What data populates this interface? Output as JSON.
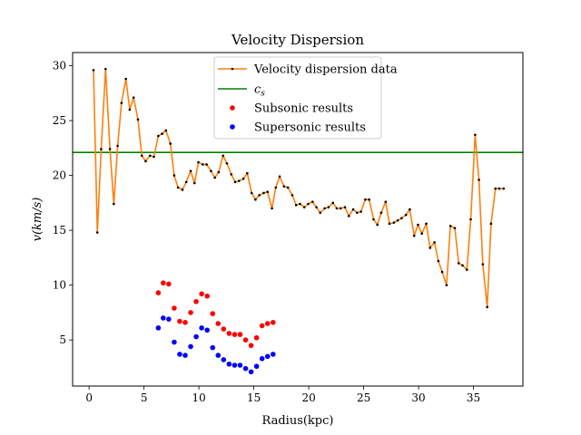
{
  "chart_data": {
    "type": "line",
    "title": "Velocity Dispersion",
    "xlabel": "Radius(kpc)",
    "ylabel": "v(km/s)",
    "xlim": [
      -1.5,
      39.5
    ],
    "ylim": [
      0.8,
      31.2
    ],
    "xticks": [
      0,
      5,
      10,
      15,
      20,
      25,
      30,
      35
    ],
    "yticks": [
      5,
      10,
      15,
      20,
      25,
      30
    ],
    "grid": false,
    "legend_position": "top-center",
    "series": [
      {
        "name": "Velocity dispersion data",
        "kind": "line-with-markers",
        "color": "#ff7f0e",
        "marker_color": "#000000",
        "x": [
          0.4,
          0.75,
          1.1,
          1.5,
          1.9,
          2.25,
          2.6,
          2.95,
          3.35,
          3.7,
          4.05,
          4.45,
          4.8,
          5.15,
          5.55,
          5.9,
          6.3,
          6.65,
          7.0,
          7.4,
          7.75,
          8.1,
          8.5,
          8.85,
          9.25,
          9.6,
          9.95,
          10.35,
          10.7,
          11.1,
          11.45,
          11.8,
          12.2,
          12.55,
          12.95,
          13.3,
          13.65,
          14.05,
          14.4,
          14.8,
          15.15,
          15.5,
          15.9,
          16.25,
          16.65,
          17.0,
          17.35,
          17.75,
          18.1,
          18.5,
          18.85,
          19.2,
          19.6,
          19.95,
          20.35,
          20.7,
          21.05,
          21.45,
          21.8,
          22.2,
          22.55,
          22.9,
          23.3,
          23.65,
          24.05,
          24.4,
          24.75,
          25.15,
          25.5,
          25.9,
          26.25,
          26.6,
          27.0,
          27.35,
          27.75,
          28.1,
          28.45,
          28.85,
          29.2,
          29.6,
          29.95,
          30.3,
          30.7,
          31.05,
          31.45,
          31.8,
          32.15,
          32.55,
          32.9,
          33.3,
          33.65,
          34.0,
          34.4,
          34.75,
          35.15,
          35.5,
          35.85,
          36.25,
          36.6,
          37.0,
          37.35,
          37.75
        ],
        "y": [
          29.6,
          14.8,
          22.4,
          29.7,
          22.4,
          17.4,
          22.7,
          26.6,
          28.8,
          26.0,
          27.1,
          25.1,
          21.8,
          21.3,
          21.8,
          21.7,
          23.6,
          23.8,
          24.1,
          22.9,
          20.0,
          18.9,
          18.7,
          19.4,
          20.4,
          19.3,
          21.2,
          21.0,
          21.0,
          20.4,
          19.8,
          20.3,
          21.8,
          21.1,
          20.1,
          19.4,
          19.5,
          19.7,
          20.2,
          18.4,
          17.8,
          18.2,
          18.4,
          18.5,
          17.0,
          18.9,
          19.9,
          19.0,
          18.9,
          18.2,
          17.3,
          17.4,
          17.1,
          17.4,
          17.6,
          17.1,
          16.6,
          17.0,
          17.1,
          17.5,
          17.0,
          17.0,
          17.1,
          16.3,
          16.9,
          16.6,
          16.7,
          17.8,
          17.8,
          16.0,
          15.5,
          16.6,
          17.6,
          15.6,
          15.7,
          15.9,
          16.1,
          16.4,
          16.9,
          14.5,
          15.5,
          14.7,
          15.6,
          13.4,
          13.9,
          12.2,
          11.2,
          10.0,
          15.4,
          15.2,
          12.0,
          11.8,
          11.4,
          16.0,
          23.7,
          19.6,
          11.9,
          8.0,
          15.6,
          18.8,
          18.8,
          18.8
        ]
      },
      {
        "name": "c_s",
        "kind": "hline",
        "color": "#008000",
        "y": 22.1
      },
      {
        "name": "Subsonic results",
        "kind": "scatter",
        "color": "#ff0000",
        "x": [
          6.3,
          6.75,
          7.25,
          7.75,
          8.25,
          8.75,
          9.25,
          9.75,
          10.25,
          10.75,
          11.25,
          11.75,
          12.25,
          12.75,
          13.25,
          13.75,
          14.25,
          14.75,
          15.25,
          15.75,
          16.25,
          16.75
        ],
        "y": [
          9.3,
          10.2,
          10.1,
          7.9,
          6.7,
          6.6,
          7.5,
          8.5,
          9.2,
          9.0,
          7.4,
          6.5,
          6.0,
          5.6,
          5.5,
          5.5,
          5.0,
          4.5,
          5.2,
          6.3,
          6.5,
          6.6
        ]
      },
      {
        "name": "Supersonic results",
        "kind": "scatter",
        "color": "#0000ff",
        "x": [
          6.3,
          6.75,
          7.25,
          7.75,
          8.25,
          8.75,
          9.25,
          9.75,
          10.25,
          10.75,
          11.25,
          11.75,
          12.25,
          12.75,
          13.25,
          13.75,
          14.25,
          14.75,
          15.25,
          15.75,
          16.25,
          16.75
        ],
        "y": [
          6.1,
          7.0,
          6.9,
          4.8,
          3.7,
          3.6,
          4.4,
          5.3,
          6.1,
          5.9,
          4.3,
          3.6,
          3.2,
          2.8,
          2.7,
          2.7,
          2.4,
          2.1,
          2.6,
          3.3,
          3.5,
          3.7
        ]
      }
    ],
    "legend": [
      {
        "label": "Velocity dispersion data",
        "symbol": "line-marker",
        "color": "#ff7f0e"
      },
      {
        "label": "c",
        "sub": "s",
        "symbol": "line",
        "color": "#008000"
      },
      {
        "label": "Subsonic results",
        "symbol": "dot",
        "color": "#ff0000"
      },
      {
        "label": "Supersonic results",
        "symbol": "dot",
        "color": "#0000ff"
      }
    ]
  }
}
